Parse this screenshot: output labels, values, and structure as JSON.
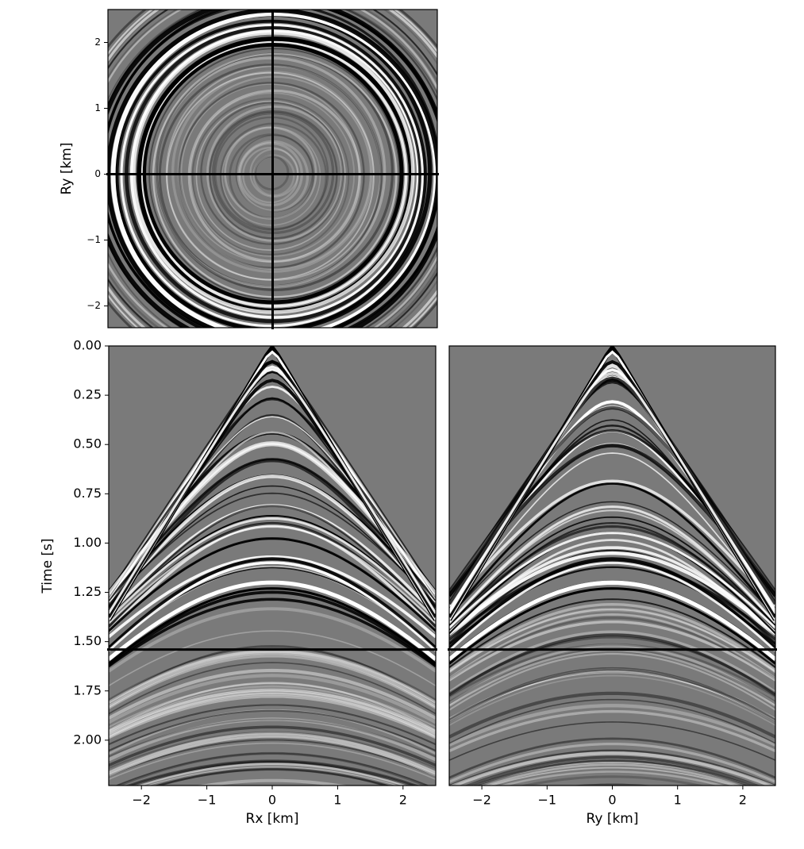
{
  "chart_data": [
    {
      "type": "image",
      "ylabel": "Ry [km]",
      "xlim": [
        -2.5,
        2.5
      ],
      "ylim": [
        -2.33,
        2.5
      ],
      "yticks": [
        {
          "value": -2,
          "label": "−2"
        },
        {
          "value": -1,
          "label": "−1"
        },
        0,
        1,
        2
      ],
      "vline": 0,
      "hline": 0,
      "colormap": "gray"
    },
    {
      "type": "image",
      "xlabel": "Rx [km]",
      "ylabel": "Time [s]",
      "xlim": [
        -2.5,
        2.5
      ],
      "ylim": [
        2.23,
        0
      ],
      "xticks": [
        {
          "value": -2,
          "label": "−2"
        },
        {
          "value": -1,
          "label": "−1"
        },
        0,
        1,
        2
      ],
      "yticks": [
        {
          "value": 0,
          "label": "0.00"
        },
        {
          "value": 0.25,
          "label": "0.25"
        },
        {
          "value": 0.5,
          "label": "0.50"
        },
        {
          "value": 0.75,
          "label": "0.75"
        },
        {
          "value": 1,
          "label": "1.00"
        },
        {
          "value": 1.25,
          "label": "1.25"
        },
        {
          "value": 1.5,
          "label": "1.50"
        },
        {
          "value": 1.75,
          "label": "1.75"
        },
        {
          "value": 2,
          "label": "2.00"
        }
      ],
      "hline": 1.54,
      "colormap": "gray"
    },
    {
      "type": "image",
      "xlabel": "Ry [km]",
      "xlim": [
        -2.5,
        2.5
      ],
      "ylim": [
        2.23,
        0
      ],
      "xticks": [
        {
          "value": -2,
          "label": "−2"
        },
        {
          "value": -1,
          "label": "−1"
        },
        0,
        1,
        2
      ],
      "hline": 1.54,
      "colormap": "gray"
    }
  ]
}
